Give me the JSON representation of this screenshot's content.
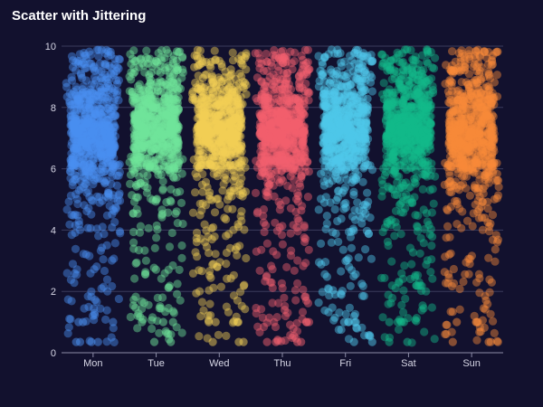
{
  "chart_data": {
    "type": "scatter",
    "title": "Scatter with Jittering",
    "xlabel": "",
    "ylabel": "",
    "categories": [
      "Mon",
      "Tue",
      "Wed",
      "Thu",
      "Fri",
      "Sat",
      "Sun"
    ],
    "ylim": [
      0,
      10
    ],
    "yticks": [
      "0",
      "2",
      "4",
      "6",
      "8",
      "10"
    ],
    "grid": true,
    "jitter": true,
    "series": [
      {
        "category": "Mon",
        "color": "#4a8ff0",
        "core_range": [
          6.2,
          8.1
        ],
        "spread_range": [
          0.3,
          9.9
        ]
      },
      {
        "category": "Tue",
        "color": "#6fe59a",
        "core_range": [
          6.4,
          8.2
        ],
        "spread_range": [
          0.3,
          9.9
        ]
      },
      {
        "category": "Wed",
        "color": "#f2cf55",
        "core_range": [
          6.3,
          8.1
        ],
        "spread_range": [
          0.3,
          9.9
        ]
      },
      {
        "category": "Thu",
        "color": "#f2606e",
        "core_range": [
          6.3,
          8.1
        ],
        "spread_range": [
          0.3,
          9.9
        ]
      },
      {
        "category": "Fri",
        "color": "#4fc8ea",
        "core_range": [
          6.3,
          8.2
        ],
        "spread_range": [
          0.3,
          9.9
        ]
      },
      {
        "category": "Sat",
        "color": "#13b98a",
        "core_range": [
          6.4,
          8.2
        ],
        "spread_range": [
          0.3,
          9.9
        ]
      },
      {
        "category": "Sun",
        "color": "#f88a3a",
        "core_range": [
          6.2,
          8.1
        ],
        "spread_range": [
          0.3,
          9.9
        ]
      }
    ]
  },
  "colors": {
    "background": "#12112e",
    "grid": "#3b3b5c",
    "axis_text": "#d7d7e6"
  }
}
